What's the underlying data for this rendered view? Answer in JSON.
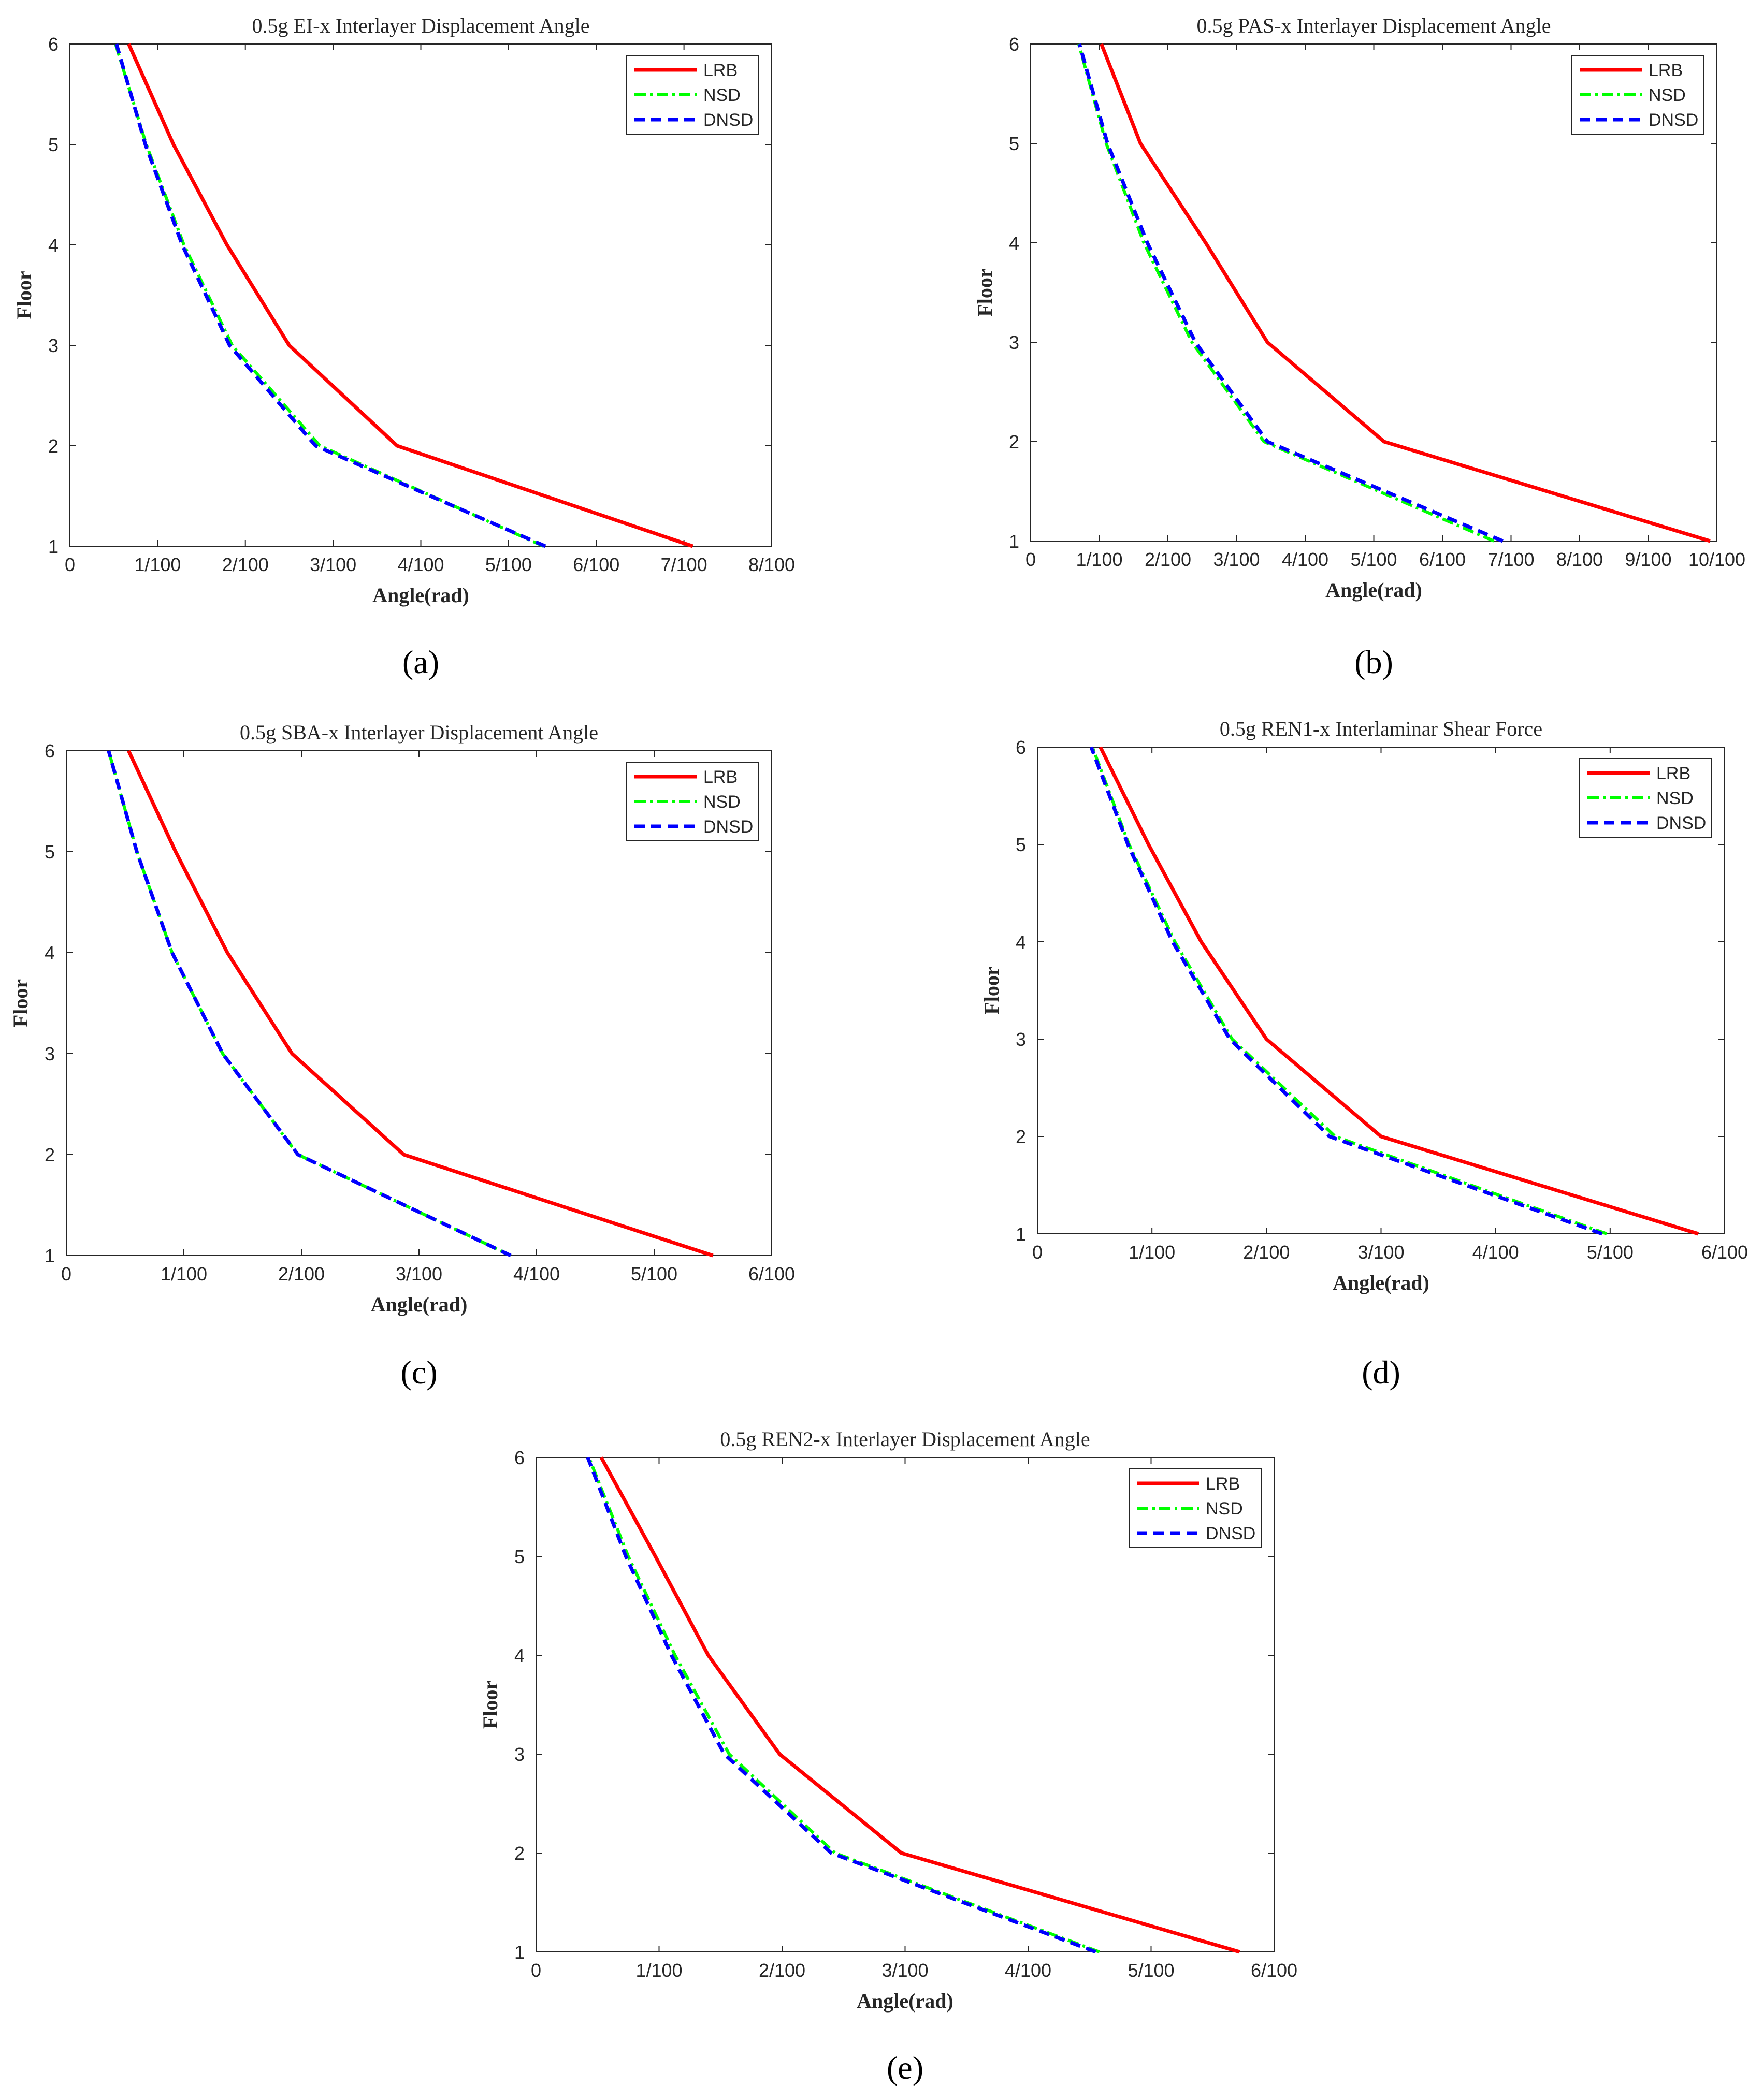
{
  "colors": {
    "LRB": "#ff0000",
    "NSD": "#00ff00",
    "DNSD": "#0000ff",
    "axis": "#262626"
  },
  "chart_data": [
    {
      "type": "line",
      "caption": "(a)",
      "title": "0.5g EI-x Interlayer Displacement Angle",
      "xlabel": "Angle(rad)",
      "ylabel": "Floor",
      "xlim": [
        0,
        0.08
      ],
      "ylim": [
        1,
        6
      ],
      "xticks": [
        0,
        0.01,
        0.02,
        0.03,
        0.04,
        0.05,
        0.06,
        0.07,
        0.08
      ],
      "xtick_labels": [
        "0",
        "1/100",
        "2/100",
        "3/100",
        "4/100",
        "5/100",
        "6/100",
        "7/100",
        "8/100"
      ],
      "yticks": [
        1,
        2,
        3,
        4,
        5,
        6
      ],
      "ytick_labels": [
        "1",
        "2",
        "3",
        "4",
        "5",
        "6"
      ],
      "legend_position": "top-right",
      "series": [
        {
          "name": "LRB",
          "floors": [
            1,
            2,
            3,
            4,
            5,
            6
          ],
          "values": [
            0.071,
            0.0373,
            0.025,
            0.0179,
            0.0118,
            0.0067
          ]
        },
        {
          "name": "NSD",
          "floors": [
            1,
            2,
            3,
            4,
            5,
            6
          ],
          "values": [
            0.054,
            0.0285,
            0.0185,
            0.013,
            0.0087,
            0.0052
          ]
        },
        {
          "name": "DNSD",
          "floors": [
            1,
            2,
            3,
            4,
            5,
            6
          ],
          "values": [
            0.0542,
            0.028,
            0.0182,
            0.0128,
            0.0086,
            0.0053
          ]
        }
      ]
    },
    {
      "type": "line",
      "caption": "(b)",
      "title": "0.5g PAS-x Interlayer Displacement Angle",
      "xlabel": "Angle(rad)",
      "ylabel": "Floor",
      "xlim": [
        0,
        0.1
      ],
      "ylim": [
        1,
        6
      ],
      "xticks": [
        0,
        0.01,
        0.02,
        0.03,
        0.04,
        0.05,
        0.06,
        0.07,
        0.08,
        0.09,
        0.1
      ],
      "xtick_labels": [
        "0",
        "1/100",
        "2/100",
        "3/100",
        "4/100",
        "5/100",
        "6/100",
        "7/100",
        "8/100",
        "9/100",
        "10/100"
      ],
      "yticks": [
        1,
        2,
        3,
        4,
        5,
        6
      ],
      "ytick_labels": [
        "1",
        "2",
        "3",
        "4",
        "5",
        "6"
      ],
      "legend_position": "top-right",
      "series": [
        {
          "name": "LRB",
          "floors": [
            1,
            2,
            3,
            4,
            5,
            6
          ],
          "values": [
            0.099,
            0.0515,
            0.0345,
            0.0255,
            0.016,
            0.0103
          ]
        },
        {
          "name": "NSD",
          "floors": [
            1,
            2,
            3,
            4,
            5,
            6
          ],
          "values": [
            0.0675,
            0.034,
            0.0235,
            0.0165,
            0.011,
            0.007
          ]
        },
        {
          "name": "DNSD",
          "floors": [
            1,
            2,
            3,
            4,
            5,
            6
          ],
          "values": [
            0.0688,
            0.0345,
            0.024,
            0.017,
            0.0112,
            0.0071
          ]
        }
      ]
    },
    {
      "type": "line",
      "caption": "(c)",
      "title": "0.5g SBA-x Interlayer Displacement Angle",
      "xlabel": "Angle(rad)",
      "ylabel": "Floor",
      "xlim": [
        0,
        0.06
      ],
      "ylim": [
        1,
        6
      ],
      "xticks": [
        0,
        0.01,
        0.02,
        0.03,
        0.04,
        0.05,
        0.06
      ],
      "xtick_labels": [
        "0",
        "1/100",
        "2/100",
        "3/100",
        "4/100",
        "5/100",
        "6/100"
      ],
      "yticks": [
        1,
        2,
        3,
        4,
        5,
        6
      ],
      "ytick_labels": [
        "1",
        "2",
        "3",
        "4",
        "5",
        "6"
      ],
      "legend_position": "top-right",
      "series": [
        {
          "name": "LRB",
          "floors": [
            1,
            2,
            3,
            4,
            5,
            6
          ],
          "values": [
            0.055,
            0.0287,
            0.0192,
            0.0137,
            0.0093,
            0.0053
          ]
        },
        {
          "name": "NSD",
          "floors": [
            1,
            2,
            3,
            4,
            5,
            6
          ],
          "values": [
            0.0378,
            0.0197,
            0.0133,
            0.009,
            0.006,
            0.0036
          ]
        },
        {
          "name": "DNSD",
          "floors": [
            1,
            2,
            3,
            4,
            5,
            6
          ],
          "values": [
            0.0378,
            0.0197,
            0.0133,
            0.009,
            0.006,
            0.0036
          ]
        }
      ]
    },
    {
      "type": "line",
      "caption": "(d)",
      "title": "0.5g REN1-x Interlaminar Shear Force",
      "xlabel": "Angle(rad)",
      "ylabel": "Floor",
      "xlim": [
        0,
        0.06
      ],
      "ylim": [
        1,
        6
      ],
      "xticks": [
        0,
        0.01,
        0.02,
        0.03,
        0.04,
        0.05,
        0.06
      ],
      "xtick_labels": [
        "0",
        "1/100",
        "2/100",
        "3/100",
        "4/100",
        "5/100",
        "6/100"
      ],
      "yticks": [
        1,
        2,
        3,
        4,
        5,
        6
      ],
      "ytick_labels": [
        "1",
        "2",
        "3",
        "4",
        "5",
        "6"
      ],
      "legend_position": "top-right",
      "series": [
        {
          "name": "LRB",
          "floors": [
            1,
            2,
            3,
            4,
            5,
            6
          ],
          "values": [
            0.0577,
            0.03,
            0.02,
            0.0143,
            0.0097,
            0.0055
          ]
        },
        {
          "name": "NSD",
          "floors": [
            1,
            2,
            3,
            4,
            5,
            6
          ],
          "values": [
            0.0497,
            0.026,
            0.017,
            0.012,
            0.008,
            0.0048
          ]
        },
        {
          "name": "DNSD",
          "floors": [
            1,
            2,
            3,
            4,
            5,
            6
          ],
          "values": [
            0.0493,
            0.0255,
            0.0168,
            0.0118,
            0.0079,
            0.0047
          ]
        }
      ]
    },
    {
      "type": "line",
      "caption": "(e)",
      "title": "0.5g REN2-x Interlayer Displacement Angle",
      "xlabel": "Angle(rad)",
      "ylabel": "Floor",
      "xlim": [
        0,
        0.06
      ],
      "ylim": [
        1,
        6
      ],
      "xticks": [
        0,
        0.01,
        0.02,
        0.03,
        0.04,
        0.05,
        0.06
      ],
      "xtick_labels": [
        "0",
        "1/100",
        "2/100",
        "3/100",
        "4/100",
        "5/100",
        "6/100"
      ],
      "yticks": [
        1,
        2,
        3,
        4,
        5,
        6
      ],
      "ytick_labels": [
        "1",
        "2",
        "3",
        "4",
        "5",
        "6"
      ],
      "legend_position": "top-right",
      "series": [
        {
          "name": "LRB",
          "floors": [
            1,
            2,
            3,
            4,
            5,
            6
          ],
          "values": [
            0.0572,
            0.0297,
            0.0198,
            0.014,
            0.0097,
            0.0053
          ]
        },
        {
          "name": "NSD",
          "floors": [
            1,
            2,
            3,
            4,
            5,
            6
          ],
          "values": [
            0.0458,
            0.0243,
            0.0157,
            0.0113,
            0.0075,
            0.0043
          ]
        },
        {
          "name": "DNSD",
          "floors": [
            1,
            2,
            3,
            4,
            5,
            6
          ],
          "values": [
            0.0455,
            0.024,
            0.0153,
            0.011,
            0.0073,
            0.0042
          ]
        }
      ]
    }
  ]
}
